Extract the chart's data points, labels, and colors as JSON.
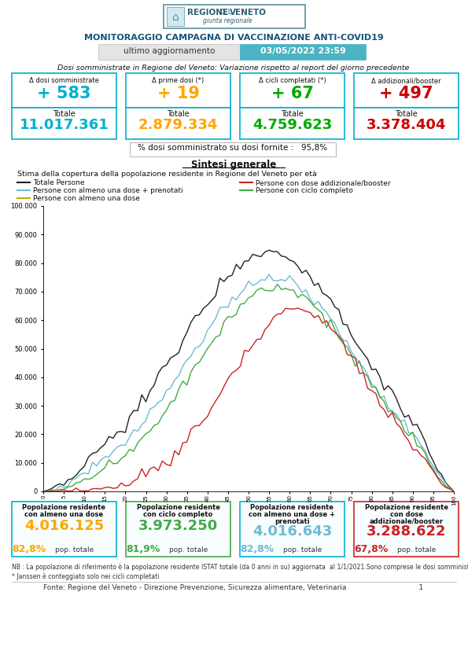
{
  "title_main": "MONITORAGGIO CAMPAGNA DI VACCINAZIONE ANTI-COVID19",
  "last_update_label": "ultimo aggiornamento",
  "last_update_value": "03/05/2022 23:59",
  "dosi_subtitle": "Dosi somministrate in Regione del Veneto: Variazione rispetto al report del giorno precedente",
  "boxes": [
    {
      "label": "Δ dosi somministrate",
      "delta": "+ 583",
      "delta_color": "#00b0d0",
      "totale_label": "Totale",
      "totale_value": "11.017.361",
      "totale_color": "#00b0d0"
    },
    {
      "label": "Δ prime dosi (*)",
      "delta": "+ 19",
      "delta_color": "#ffa500",
      "totale_label": "Totale",
      "totale_value": "2.879.334",
      "totale_color": "#ffa500"
    },
    {
      "label": "Δ cicli completati (*)",
      "delta": "+ 67",
      "delta_color": "#00aa00",
      "totale_label": "Totale",
      "totale_value": "4.759.623",
      "totale_color": "#00aa00"
    },
    {
      "label": "Δ addizionali/booster",
      "delta": "+ 497",
      "delta_color": "#cc0000",
      "totale_label": "Totale",
      "totale_value": "3.378.404",
      "totale_color": "#cc0000"
    }
  ],
  "pct_text": "% dosi somministrato su dosi fornite :   95,8%",
  "sintesi_title": "Sintesi generale",
  "chart_subtitle": "Stima della copertura della popolazione residente in Regione del Veneto per età",
  "legend_entries": [
    {
      "label": "Totale Persone",
      "color": "#222222"
    },
    {
      "label": "Persone con almeno una dose + prenotati",
      "color": "#6dbbd4"
    },
    {
      "label": "Persone con almeno una dose",
      "color": "#ccaa00"
    },
    {
      "label": "Persone con dose addizionale/booster",
      "color": "#cc2222"
    },
    {
      "label": "Persone con ciclo completo",
      "color": "#44aa44"
    }
  ],
  "yticks": [
    0,
    10000,
    20000,
    30000,
    40000,
    50000,
    60000,
    70000,
    80000,
    90000,
    100000
  ],
  "ytick_labels": [
    "0",
    "10.000",
    "20.000",
    "30.000",
    "40.000",
    "50.000",
    "60.000",
    "70.000",
    "80.000",
    "90.000",
    "100.000"
  ],
  "bottom_boxes": [
    {
      "label1": "Popolazione residente",
      "label2": "con almeno una dose",
      "label3": "",
      "value": "4.016.125",
      "value_color": "#ffa500",
      "pct": "82,8%",
      "pct_suffix": "pop. totale",
      "border_color": "#00b0d0"
    },
    {
      "label1": "Popolazione residente",
      "label2": "con ciclo completo",
      "label3": "",
      "value": "3.973.250",
      "value_color": "#44aa44",
      "pct": "81,9%",
      "pct_suffix": "pop. totale",
      "border_color": "#44aa44"
    },
    {
      "label1": "Popolazione residente",
      "label2": "con almeno una dose +",
      "label3": "prenotati",
      "value": "4.016.643",
      "value_color": "#6dbbd4",
      "pct": "82,8%",
      "pct_suffix": "pop. totale",
      "border_color": "#00b0d0"
    },
    {
      "label1": "Popolazione residente",
      "label2": "con dose",
      "label3": "addizionale/booster",
      "value": "3.288.622",
      "value_color": "#cc2222",
      "pct": "67,8%",
      "pct_suffix": "pop. totale",
      "border_color": "#cc2222"
    }
  ],
  "note1": "NB : La popolazione di riferimento è la popolazione residente ISTAT totale (da 0 anni in su) aggiornata  al 1/1/2021.Sono comprese le dosi somministrate fuori Regione",
  "note2": "* Janssen è conteggiato solo nei cicli completati",
  "footer": "Fonte: Regione del Veneto - Direzione Prevenzione, Sicurezza alimentare, Veterinaria                                1",
  "box_border_color": "#00b0d0"
}
